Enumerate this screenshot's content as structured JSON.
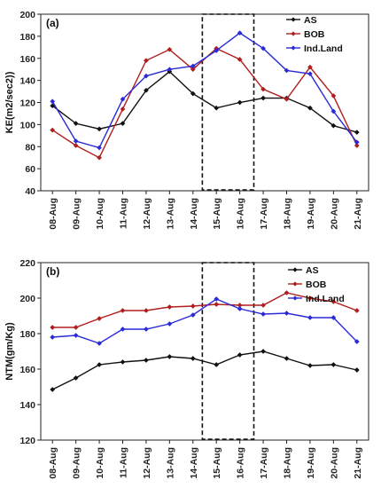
{
  "chart_data": [
    {
      "type": "line",
      "panel_label": "(a)",
      "ylabel": "KE(m2/sec2))",
      "xlabel": "",
      "ylim": [
        40,
        200
      ],
      "yticks": [
        40,
        60,
        80,
        100,
        120,
        140,
        160,
        180,
        200
      ],
      "categories": [
        "08-Aug",
        "09-Aug",
        "10-Aug",
        "11-Aug",
        "12-Aug",
        "13-Aug",
        "14-Aug",
        "15-Aug",
        "16-Aug",
        "17-Aug",
        "18-Aug",
        "19-Aug",
        "20-Aug",
        "21-Aug"
      ],
      "legend_position": "top-right",
      "highlight_range": [
        "15-Aug",
        "16-Aug"
      ],
      "series": [
        {
          "name": "AS",
          "color": "#111111",
          "marker": "diamond",
          "values": [
            117,
            101,
            96,
            101,
            131,
            148,
            128,
            115,
            120,
            124,
            124,
            115,
            99,
            93
          ]
        },
        {
          "name": "BOB",
          "color": "#b01e1e",
          "marker": "diamond",
          "values": [
            95,
            81,
            70,
            114,
            158,
            168,
            150,
            169,
            159,
            132,
            123,
            152,
            126,
            81
          ]
        },
        {
          "name": "Ind.Land",
          "color": "#2a2ad8",
          "marker": "diamond",
          "values": [
            121,
            85,
            79,
            123,
            144,
            150,
            153,
            167,
            183,
            169,
            149,
            146,
            112,
            84
          ]
        }
      ]
    },
    {
      "type": "line",
      "panel_label": "(b)",
      "ylabel": "NTM(gm/Kg)",
      "xlabel": "",
      "ylim": [
        120,
        220
      ],
      "yticks": [
        120,
        140,
        160,
        180,
        200,
        220
      ],
      "categories": [
        "08-Aug",
        "09-Aug",
        "10-Aug",
        "11-Aug",
        "12-Aug",
        "13-Aug",
        "14-Aug",
        "15-Aug",
        "16-Aug",
        "17-Aug",
        "18-Aug",
        "19-Aug",
        "20-Aug",
        "21-Aug"
      ],
      "legend_position": "top-right",
      "highlight_range": [
        "15-Aug",
        "16-Aug"
      ],
      "series": [
        {
          "name": "AS",
          "color": "#111111",
          "marker": "diamond",
          "values": [
            148.5,
            155,
            162.5,
            164,
            165,
            167,
            166,
            162.5,
            168,
            170,
            166,
            162,
            162.5,
            159.5
          ]
        },
        {
          "name": "BOB",
          "color": "#b01e1e",
          "marker": "diamond",
          "values": [
            183.5,
            183.5,
            188.5,
            193,
            193,
            195,
            195.5,
            196.5,
            196,
            196,
            203,
            200,
            198,
            193
          ]
        },
        {
          "name": "Ind.Land",
          "color": "#2a2ad8",
          "marker": "diamond",
          "values": [
            178,
            179,
            174.5,
            182.5,
            182.5,
            185.5,
            190.5,
            199.5,
            194,
            191,
            191.5,
            189,
            189,
            175.5
          ]
        }
      ]
    }
  ]
}
